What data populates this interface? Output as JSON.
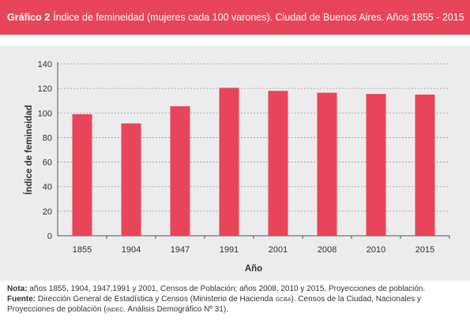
{
  "header": {
    "label": "Gráfico 2",
    "title": "Índice de femineidad (mujeres cada 100 varones). Ciudad de Buenos Aires. Años 1855 - 2015"
  },
  "colors": {
    "accent": "#e8455a",
    "panel": "#ececec"
  },
  "chart_data": {
    "type": "bar",
    "categories": [
      "1855",
      "1904",
      "1947",
      "1991",
      "2001",
      "2008",
      "2010",
      "2015"
    ],
    "values": [
      99,
      91.5,
      105.5,
      120.5,
      118,
      116.5,
      115.5,
      115
    ],
    "xlabel": "Año",
    "ylabel": "Índice de femineidad",
    "ylim": [
      0,
      140
    ],
    "yticks": [
      "0",
      "20",
      "40",
      "60",
      "80",
      "100",
      "120",
      "140"
    ],
    "grid": true,
    "bar_color": "#e8455a"
  },
  "notes": {
    "nota_label": "Nota:",
    "nota_text": "años 1855, 1904, 1947,1991 y 2001, Censos de Población; años 2008, 2010 y 2015, Proyecciones de población.",
    "fuente_label": "Fuente:",
    "fuente_text_1": "Dirección General de Estadística y Censos (Ministerio de Hacienda",
    "fuente_gcba": "GCBA",
    "fuente_text_2": "). Censos de la Ciudad, Nacionales y Proyecciones de población (",
    "fuente_indec": "INDEC",
    "fuente_text_3": ". Análisis Demográfico Nº 31)."
  }
}
